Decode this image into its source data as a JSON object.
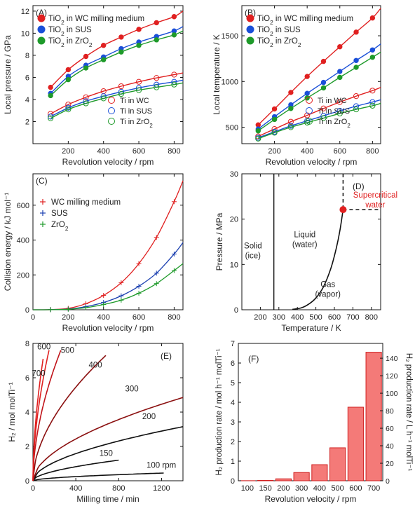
{
  "chart_data": [
    {
      "id": "A",
      "panel_label": "(A)",
      "type": "line",
      "xlabel": "Revolution velocity / rpm",
      "ylabel": "Local pressure / GPa",
      "xlim": [
        0,
        850
      ],
      "ylim": [
        0,
        12.5
      ],
      "xticks": [
        200,
        400,
        600,
        800
      ],
      "yticks": [
        2,
        4,
        6,
        8,
        10,
        12
      ],
      "x": [
        100,
        200,
        300,
        400,
        500,
        600,
        700,
        800
      ],
      "legend_position": "top-left",
      "legend2_position": "bottom-right",
      "series": [
        {
          "name": "TiO2 in WC milling medium",
          "color": "#e02020",
          "marker": "filled",
          "values": [
            5.1,
            6.7,
            7.9,
            8.9,
            9.65,
            10.35,
            10.95,
            11.5
          ],
          "fit_end": 12.0
        },
        {
          "name": "TiO2 in SUS",
          "color": "#1a4fd8",
          "marker": "filled",
          "values": [
            4.55,
            6.1,
            7.1,
            7.85,
            8.6,
            9.2,
            9.7,
            10.2
          ],
          "fit_end": 10.6
        },
        {
          "name": "TiO2 in ZrO2",
          "color": "#1e9a2a",
          "marker": "filled",
          "values": [
            4.35,
            5.8,
            6.85,
            7.6,
            8.3,
            8.9,
            9.4,
            9.85
          ],
          "fit_end": 10.2
        },
        {
          "name": "Ti in WC",
          "color": "#e02020",
          "marker": "open",
          "values": [
            2.7,
            3.55,
            4.2,
            4.75,
            5.2,
            5.6,
            5.95,
            6.25
          ],
          "fit_end": 6.4
        },
        {
          "name": "Ti in SUS",
          "color": "#1a4fd8",
          "marker": "open",
          "values": [
            2.45,
            3.25,
            3.85,
            4.3,
            4.7,
            5.05,
            5.35,
            5.6
          ],
          "fit_end": 5.75
        },
        {
          "name": "Ti in ZrO2",
          "color": "#1e9a2a",
          "marker": "open",
          "values": [
            2.3,
            3.1,
            3.65,
            4.1,
            4.5,
            4.85,
            5.1,
            5.35
          ],
          "fit_end": 5.5
        }
      ]
    },
    {
      "id": "B",
      "panel_label": "(B)",
      "type": "line",
      "xlabel": "Revolution velocity / rpm",
      "ylabel": "Local temperature / K",
      "xlim": [
        0,
        850
      ],
      "ylim": [
        320,
        1830
      ],
      "xticks": [
        200,
        400,
        600,
        800
      ],
      "yticks": [
        500,
        1000,
        1500
      ],
      "x": [
        100,
        200,
        300,
        400,
        500,
        600,
        700,
        800
      ],
      "legend_position": "top-left",
      "legend2_position": "bottom-right",
      "series": [
        {
          "name": "TiO2 in WC milling medium",
          "color": "#e02020",
          "marker": "filled",
          "values": [
            525,
            700,
            880,
            1055,
            1220,
            1380,
            1540,
            1695
          ],
          "fit_end": 1800
        },
        {
          "name": "TiO2 in SUS",
          "color": "#1a4fd8",
          "marker": "filled",
          "values": [
            480,
            615,
            745,
            870,
            990,
            1110,
            1230,
            1345
          ],
          "fit_end": 1410
        },
        {
          "name": "TiO2 in ZrO2",
          "color": "#1e9a2a",
          "marker": "filled",
          "values": [
            460,
            585,
            705,
            820,
            930,
            1045,
            1155,
            1265
          ],
          "fit_end": 1320
        },
        {
          "name": "Ti in WC",
          "color": "#e02020",
          "marker": "open",
          "values": [
            400,
            480,
            560,
            630,
            705,
            775,
            840,
            900
          ],
          "fit_end": 935
        },
        {
          "name": "Ti in SUS",
          "color": "#1a4fd8",
          "marker": "open",
          "values": [
            385,
            450,
            515,
            570,
            625,
            680,
            730,
            775
          ],
          "fit_end": 800
        },
        {
          "name": "Ti in ZrO2",
          "color": "#1e9a2a",
          "marker": "open",
          "values": [
            375,
            440,
            500,
            550,
            600,
            650,
            695,
            735
          ],
          "fit_end": 760
        }
      ]
    },
    {
      "id": "C",
      "panel_label": "(C)",
      "type": "line",
      "xlabel": "Revolution velocity / rpm",
      "ylabel": "Collision energy / kJ mol⁻¹",
      "xlim": [
        0,
        850
      ],
      "ylim": [
        0,
        780
      ],
      "xticks": [
        0,
        200,
        400,
        600,
        800
      ],
      "yticks": [
        0,
        200,
        400,
        600
      ],
      "x": [
        0,
        100,
        200,
        300,
        400,
        500,
        600,
        700,
        800
      ],
      "legend_position": "top-left",
      "series": [
        {
          "name": "WC milling medium",
          "color": "#e02020",
          "marker": "plus",
          "values": [
            0,
            1,
            8,
            35,
            82,
            155,
            265,
            415,
            620
          ],
          "fit_end": 740
        },
        {
          "name": "SUS",
          "color": "#1a3fb0",
          "marker": "plus",
          "values": [
            0,
            0.5,
            4,
            18,
            42,
            80,
            135,
            210,
            320
          ],
          "fit_end": 385
        },
        {
          "name": "ZrO2",
          "color": "#1e9a2a",
          "marker": "plus",
          "values": [
            0,
            0.4,
            3,
            12,
            30,
            55,
            95,
            150,
            225
          ],
          "fit_end": 265
        }
      ]
    },
    {
      "id": "D",
      "panel_label": "(D)",
      "type": "line",
      "xlabel": "Temperature / K",
      "ylabel": "Pressure / MPa",
      "xlim": [
        100,
        850
      ],
      "ylim": [
        0,
        30
      ],
      "xticks": [
        200,
        300,
        400,
        500,
        600,
        700,
        800
      ],
      "yticks": [
        0,
        10,
        20,
        30
      ],
      "regions": [
        {
          "label_line1": "Solid",
          "label_line2": "(ice)",
          "at": [
            160,
            13.5
          ]
        },
        {
          "label_line1": "Liquid",
          "label_line2": "(water)",
          "at": [
            440,
            16
          ]
        },
        {
          "label_line1": "Gas",
          "label_line2": "(vapor)",
          "at": [
            565,
            5
          ]
        }
      ],
      "critical_point": {
        "T": 647,
        "P": 22.1,
        "label_line1": "Supercritical",
        "label_line2": "water",
        "color": "#e02020"
      },
      "melting_line_T": 273,
      "vapor_curve": [
        [
          373,
          0.1
        ],
        [
          420,
          0.4
        ],
        [
          460,
          1.2
        ],
        [
          500,
          2.6
        ],
        [
          540,
          5
        ],
        [
          580,
          9
        ],
        [
          610,
          13.5
        ],
        [
          630,
          17.5
        ],
        [
          647,
          22.1
        ]
      ]
    },
    {
      "id": "E",
      "panel_label": "(E)",
      "type": "line",
      "xlabel": "Milling time / min",
      "ylabel": "H₂ / mol molTi⁻¹",
      "xlim": [
        0,
        1400
      ],
      "ylim": [
        0,
        8
      ],
      "xticks": [
        0,
        400,
        800,
        1200
      ],
      "yticks": [
        0,
        2,
        4,
        6,
        8
      ],
      "series": [
        {
          "name": "100 rpm",
          "color": "#111111",
          "t_end": 1220,
          "value_end": 0.45
        },
        {
          "name": "150",
          "color": "#111111",
          "t_end": 800,
          "value_end": 1.2
        },
        {
          "name": "200",
          "color": "#111111",
          "t_end": 1400,
          "value_end": 3.15
        },
        {
          "name": "300",
          "color": "#8b1010",
          "t_end": 1400,
          "value_end": 4.85
        },
        {
          "name": "400",
          "color": "#8b1010",
          "t_end": 680,
          "value_end": 7.3
        },
        {
          "name": "500",
          "color": "#c0141a",
          "t_end": 260,
          "value_end": 7.6
        },
        {
          "name": "600",
          "color": "#e02020",
          "t_end": 150,
          "value_end": 7.6
        },
        {
          "name": "700",
          "color": "#e02020",
          "t_end": 95,
          "value_end": 7.1
        }
      ]
    },
    {
      "id": "F",
      "panel_label": "(F)",
      "type": "bar",
      "xlabel": "Revolution velocity / rpm",
      "ylabel": "H₂ production rate / mol h⁻¹ molTi⁻¹",
      "ylabel_right": "H₂ production rate / L h⁻¹ molTi⁻¹",
      "categories": [
        "100",
        "150",
        "200",
        "300",
        "400",
        "500",
        "600",
        "700"
      ],
      "values": [
        0.005,
        0.02,
        0.1,
        0.42,
        0.82,
        1.68,
        3.75,
        6.55
      ],
      "ylim": [
        0,
        7
      ],
      "yticks": [
        0,
        1,
        2,
        3,
        4,
        5,
        6,
        7
      ],
      "ylim_right": [
        0,
        156.9
      ],
      "yticks_right": [
        0,
        20,
        40,
        60,
        80,
        100,
        120,
        140
      ],
      "bar_fill": "#f47a78",
      "bar_edge": "#d02020"
    }
  ]
}
